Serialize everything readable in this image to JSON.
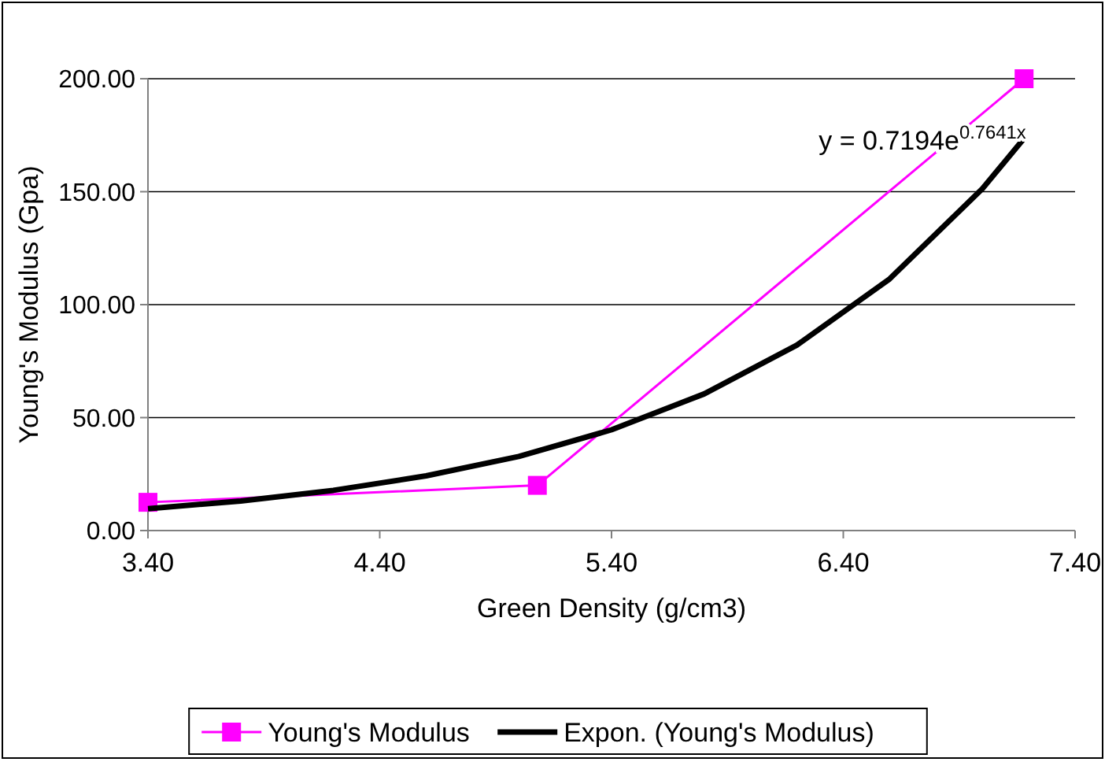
{
  "chart_data": {
    "type": "line",
    "xlabel": "Green Density (g/cm3)",
    "ylabel": "Young's Modulus (Gpa)",
    "xlim": [
      3.4,
      7.4
    ],
    "xticks": [
      {
        "value": 3.4,
        "label": "3.40"
      },
      {
        "value": 4.4,
        "label": "4.40"
      },
      {
        "value": 5.4,
        "label": "5.40"
      },
      {
        "value": 6.4,
        "label": "6.40"
      },
      {
        "value": 7.4,
        "label": "7.40"
      }
    ],
    "ylim": [
      0,
      200
    ],
    "yticks": [
      {
        "value": 0,
        "label": "0.00"
      },
      {
        "value": 50,
        "label": "50.00"
      },
      {
        "value": 100,
        "label": "100.00"
      },
      {
        "value": 150,
        "label": "150.00"
      },
      {
        "value": 200,
        "label": "200.00"
      }
    ],
    "grid": "y",
    "legend": "bottom",
    "series": [
      {
        "name": "Young's Modulus",
        "color": "#ff00ff",
        "marker": "square",
        "x": [
          3.4,
          5.08,
          7.18
        ],
        "values": [
          12.5,
          20,
          200
        ]
      },
      {
        "name": "Expon. (Young's Modulus)",
        "color": "#000000",
        "marker": "none",
        "x": [
          3.4,
          3.8,
          4.2,
          4.6,
          5.0,
          5.4,
          5.8,
          6.2,
          6.6,
          7.0,
          7.18
        ],
        "values": [
          9.7,
          13.1,
          17.8,
          24.2,
          32.8,
          44.6,
          60.5,
          82.1,
          111.4,
          151.3,
          173.6
        ]
      }
    ],
    "annotations": [
      "y = 0.7194e$^{0.7641x}$"
    ]
  }
}
